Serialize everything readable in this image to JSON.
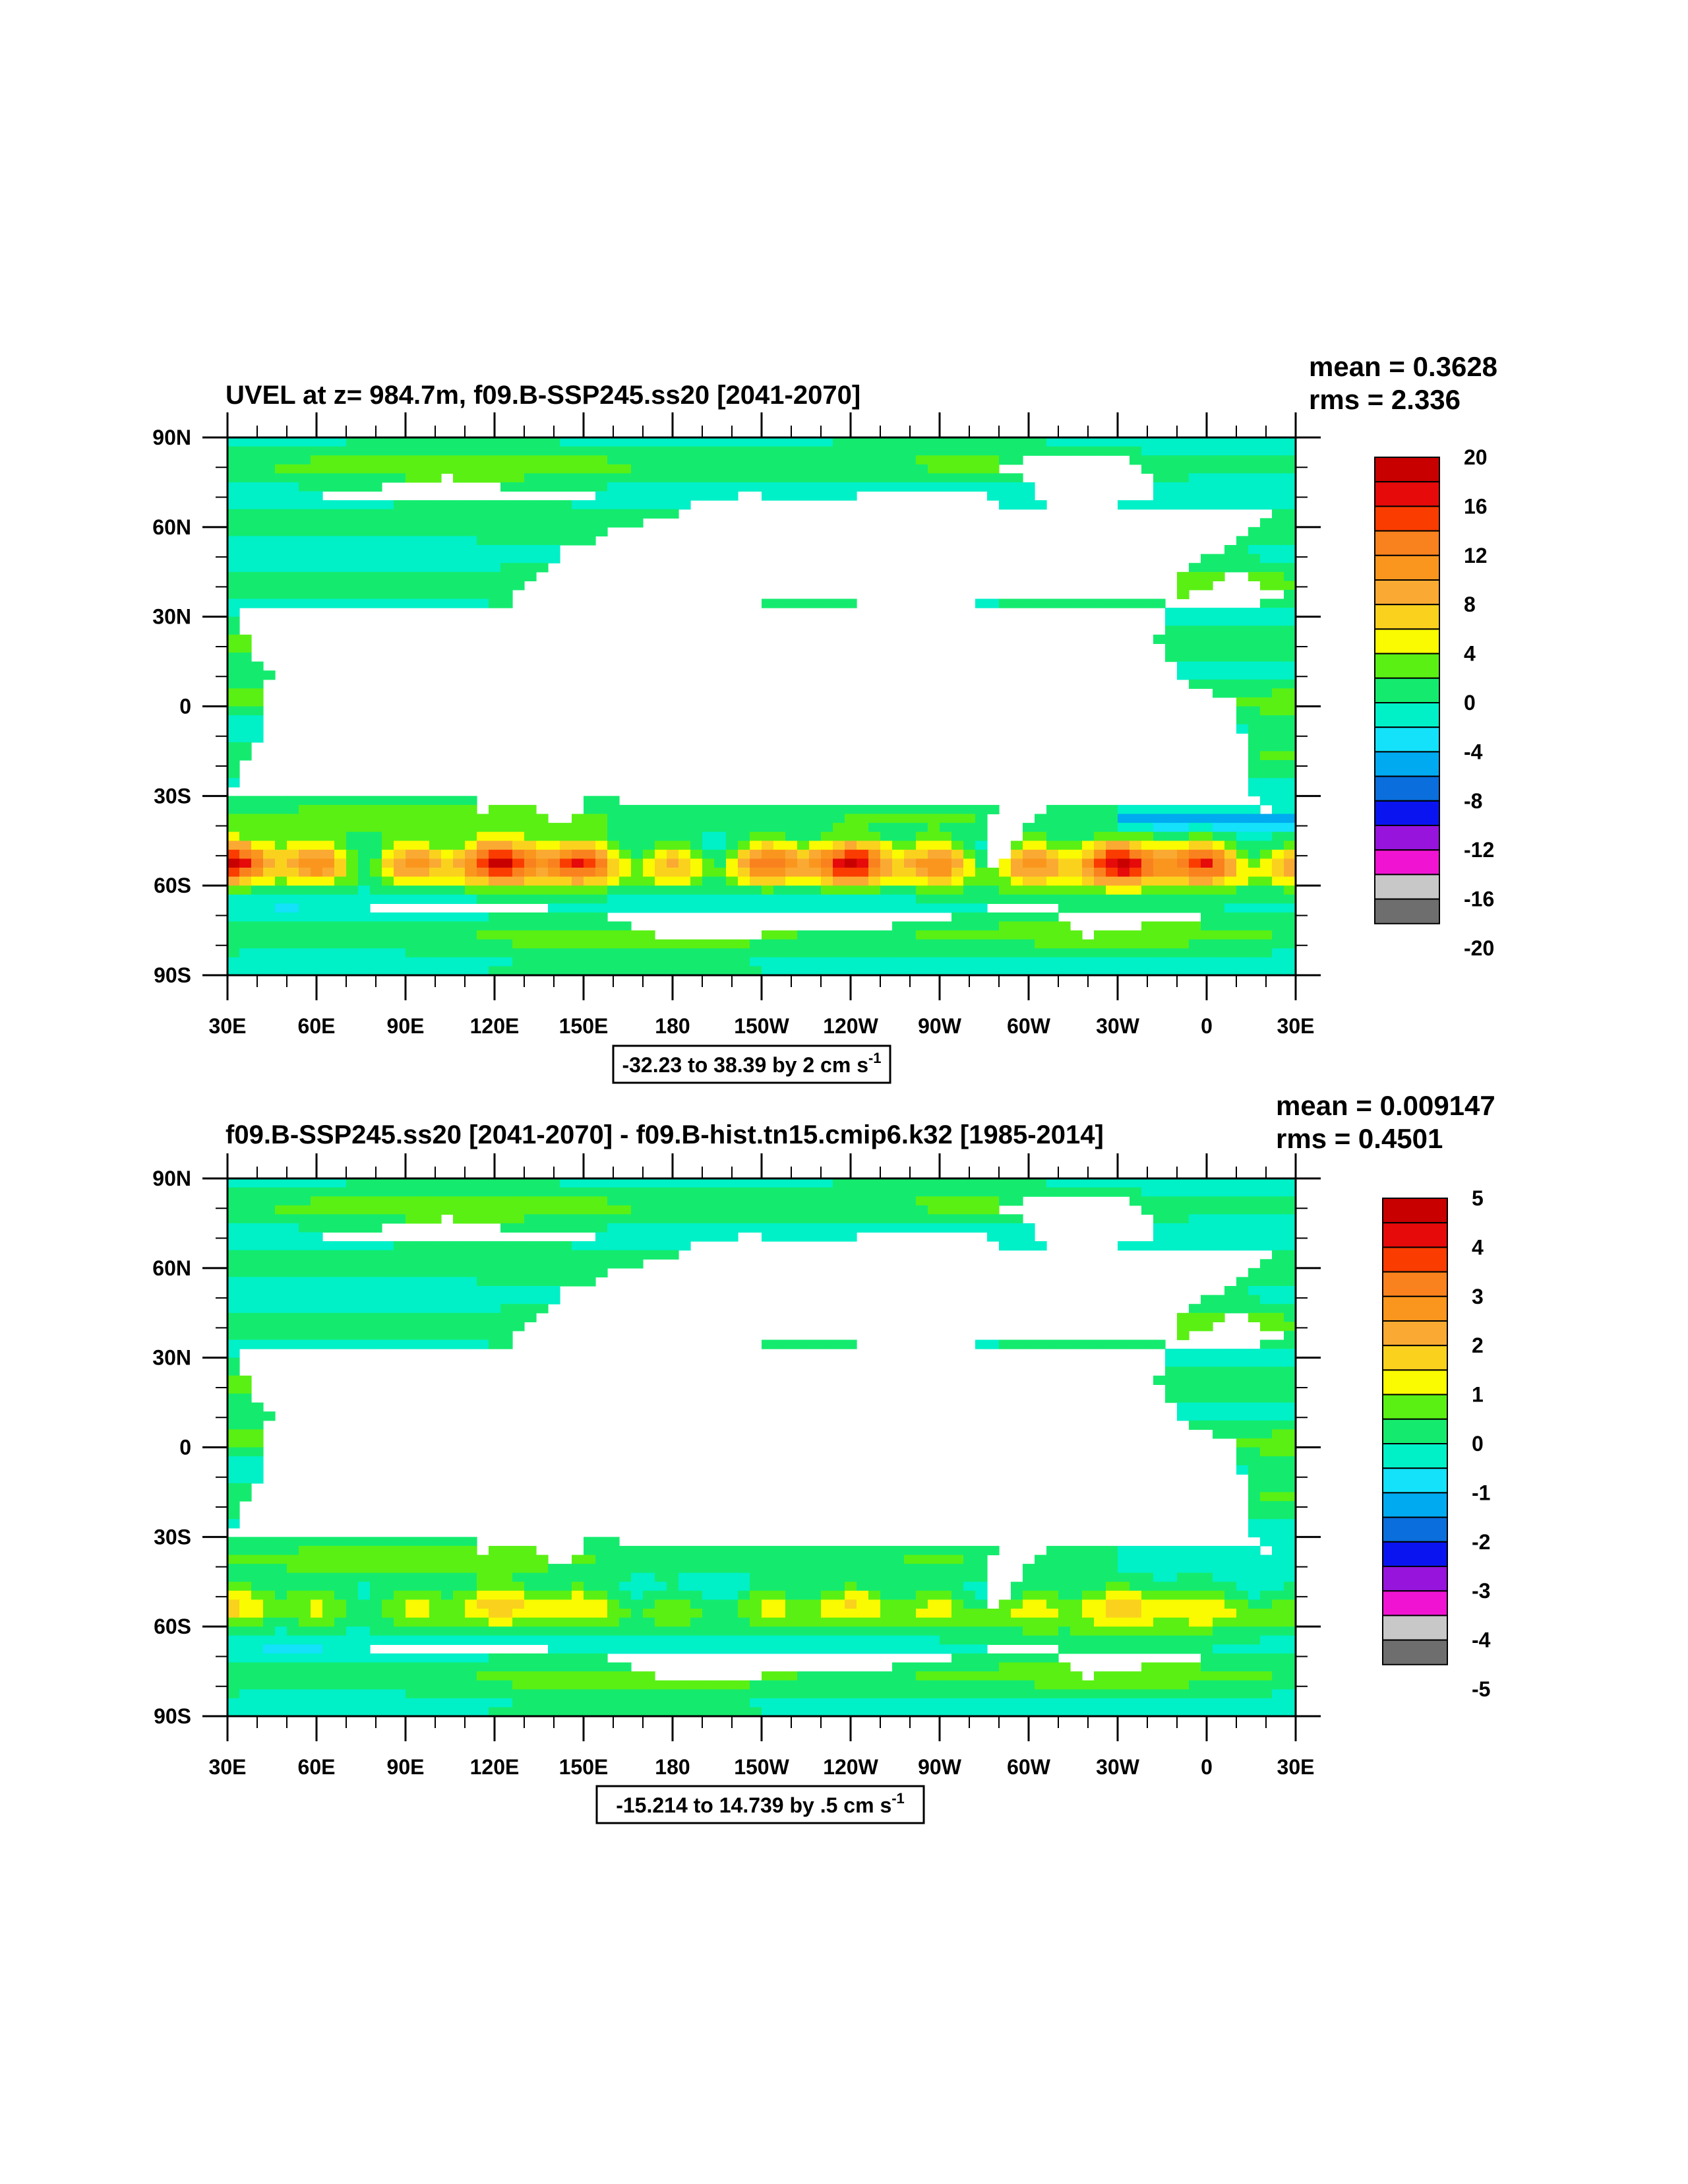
{
  "panels": [
    {
      "title": "UVEL at z= 984.7m, f09.B-SSP245.ss20 [2041-2070]",
      "mean": "mean = 0.3628",
      "rms": "rms = 2.336",
      "range_text": "-32.23 to 38.39 by 2 cm s",
      "range_sup": "-1",
      "colorbar_labels": [
        "20",
        "16",
        "12",
        "8",
        "4",
        "0",
        "-4",
        "-8",
        "-12",
        "-16",
        "-20"
      ],
      "jet_strength": 1.0
    },
    {
      "title": "f09.B-SSP245.ss20 [2041-2070] - f09.B-hist.tn15.cmip6.k32 [1985-2014]",
      "mean": "mean = 0.009147",
      "rms": "rms = 0.4501",
      "range_text": "-15.214 to 14.739 by .5 cm s",
      "range_sup": "-1",
      "colorbar_labels": [
        "5",
        "4",
        "3",
        "2",
        "1",
        "0",
        "-1",
        "-2",
        "-3",
        "-4",
        "-5"
      ],
      "jet_strength": 0.35
    }
  ],
  "lat_labels": [
    "90N",
    "60N",
    "30N",
    "0",
    "30S",
    "60S",
    "90S"
  ],
  "lon_labels": [
    "30E",
    "60E",
    "90E",
    "120E",
    "150E",
    "180",
    "150W",
    "120W",
    "90W",
    "60W",
    "30W",
    "0",
    "30E"
  ],
  "colorbar_colors": [
    "#6e6e6e",
    "#c8c8c8",
    "#f014d2",
    "#9614dc",
    "#0a14f0",
    "#0a6edc",
    "#00aaf0",
    "#14e1fa",
    "#00f0c8",
    "#14eb6e",
    "#5af014",
    "#fafa00",
    "#fad21e",
    "#faaa32",
    "#fa961e",
    "#fa821e",
    "#fa3c00",
    "#e60a0a",
    "#c80000"
  ],
  "land_color": "#ffffff"
}
